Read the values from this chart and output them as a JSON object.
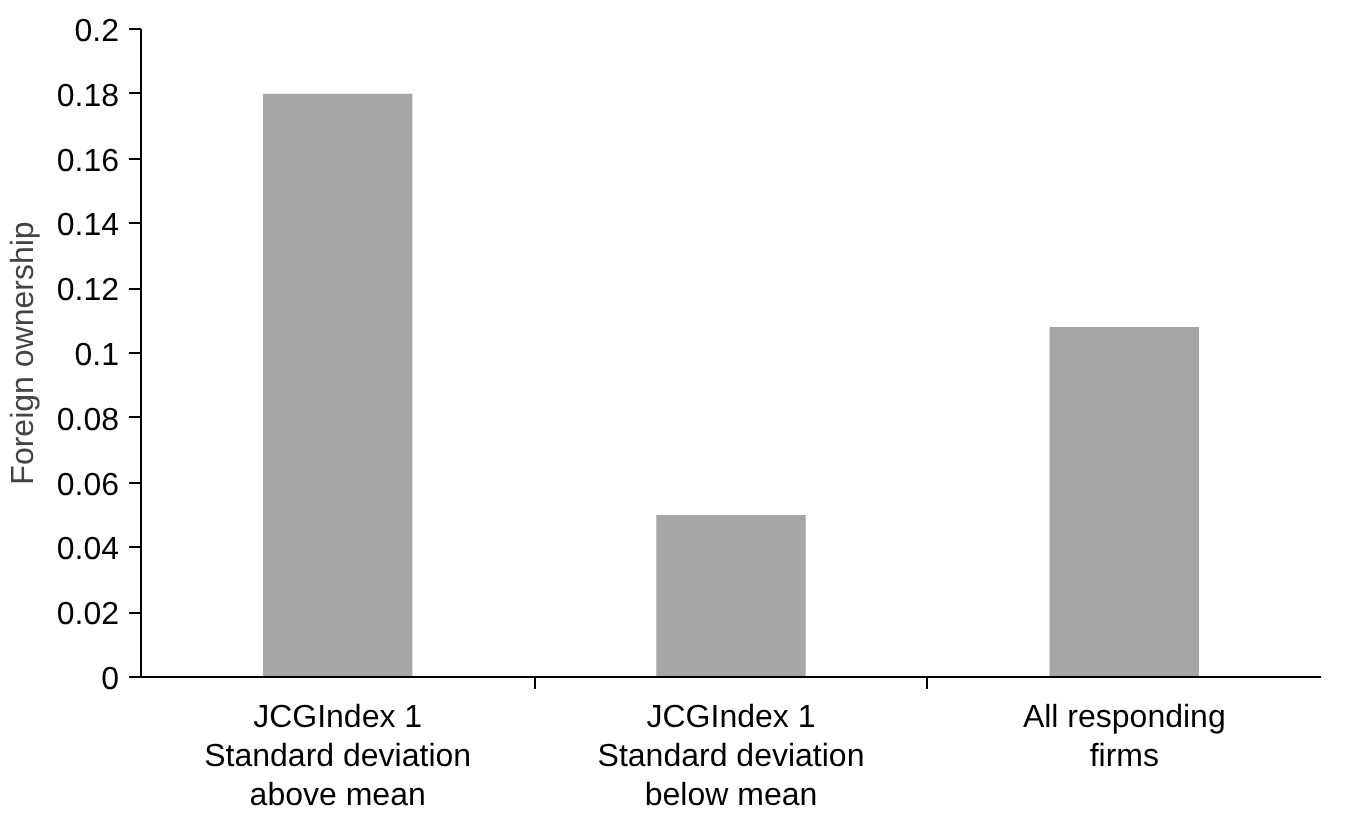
{
  "chart_data": {
    "type": "bar",
    "ylabel": "Foreign ownership",
    "categories": [
      "JCGIndex 1\nStandard deviation\nabove mean",
      "JCGIndex 1\nStandard deviation\nbelow mean",
      "All responding\nfirms"
    ],
    "values": [
      0.18,
      0.05,
      0.108
    ],
    "color": "#a6a6a6",
    "ylim": [
      0,
      0.2
    ],
    "yticks": [
      0,
      0.02,
      0.04,
      0.06,
      0.08,
      0.1,
      0.12,
      0.14,
      0.16,
      0.18,
      0.2
    ],
    "grid": false
  }
}
